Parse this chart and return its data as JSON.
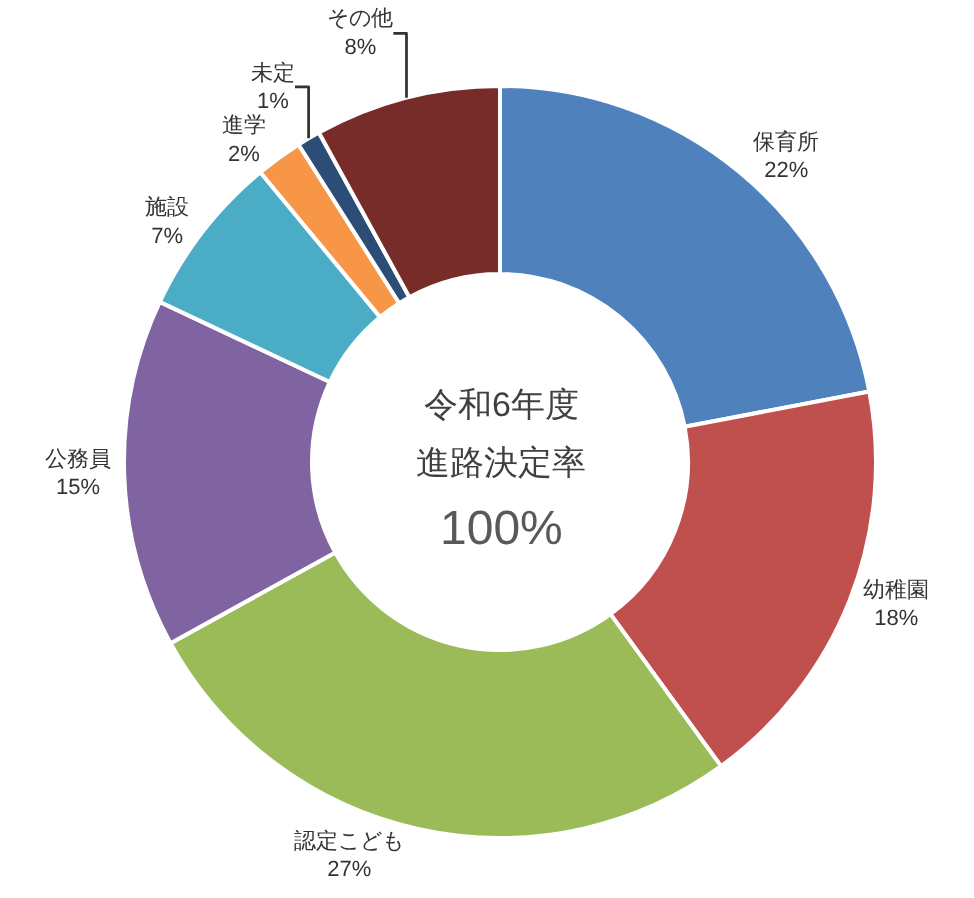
{
  "chart_data": {
    "type": "donut",
    "categories": [
      "保育所",
      "幼稚園",
      "認定こども",
      "公務員",
      "施設",
      "進学",
      "未定",
      "その他"
    ],
    "values": [
      22,
      18,
      27,
      15,
      7,
      2,
      1,
      8
    ],
    "value_labels": [
      "22%",
      "18%",
      "27%",
      "15%",
      "7%",
      "2%",
      "1%",
      "8%"
    ],
    "colors": [
      "#4f81bd",
      "#c0504d",
      "#9bbb59",
      "#8064a2",
      "#4bacc6",
      "#f79646",
      "#2c4d75",
      "#772c2a"
    ],
    "annotations": [
      "令和6年度",
      "進路決定率",
      "100%"
    ],
    "legend": false
  }
}
